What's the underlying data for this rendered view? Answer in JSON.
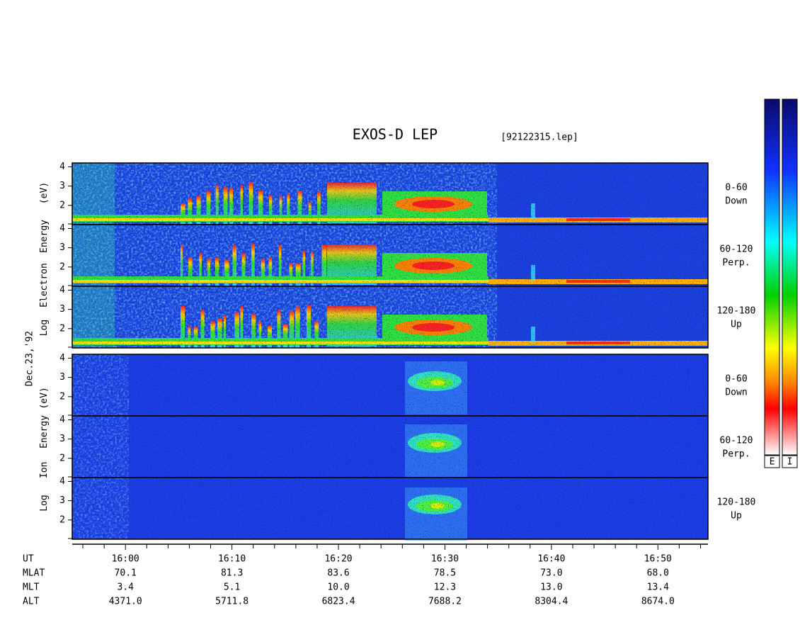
{
  "title": "EXOS-D LEP",
  "file": "[92122315.lep]",
  "date": "Dec.23,'92",
  "panel_yaxis": {
    "ylim": [
      1,
      4.2
    ],
    "yticks": [
      2,
      3,
      4
    ]
  },
  "groups": [
    {
      "label": [
        "Log",
        "Electron",
        "Energy",
        "(eV)"
      ],
      "panels": [
        {
          "label": [
            "0-60",
            "Down"
          ]
        },
        {
          "label": [
            "60-120",
            "Perp."
          ]
        },
        {
          "label": [
            "120-180",
            "Up"
          ]
        }
      ]
    },
    {
      "label": [
        "Log",
        "Ion",
        "Energy",
        "(eV)"
      ],
      "panels": [
        {
          "label": [
            "0-60",
            "Down"
          ]
        },
        {
          "label": [
            "60-120",
            "Perp."
          ]
        },
        {
          "label": [
            "120-180",
            "Up"
          ]
        }
      ]
    }
  ],
  "time_axis": {
    "xlim": [
      955,
      1014.7
    ],
    "ticks": [
      {
        "value": 960,
        "label": "16:00"
      },
      {
        "value": 970,
        "label": "16:10"
      },
      {
        "value": 980,
        "label": "16:20"
      },
      {
        "value": 990,
        "label": "16:30"
      },
      {
        "value": 1000,
        "label": "16:40"
      },
      {
        "value": 1010,
        "label": "16:50"
      }
    ],
    "minor_ticks": [
      956,
      958,
      962,
      964,
      966,
      968,
      972,
      974,
      976,
      978,
      982,
      984,
      986,
      988,
      992,
      994,
      996,
      998,
      1002,
      1004,
      1006,
      1008,
      1012,
      1014
    ]
  },
  "ephemeris": {
    "rows": [
      {
        "name": "UT"
      },
      {
        "name": "MLAT",
        "values": [
          "70.1",
          "81.3",
          "83.6",
          "78.5",
          "73.0",
          "68.0"
        ]
      },
      {
        "name": "MLT",
        "values": [
          "3.4",
          "5.1",
          "10.0",
          "12.3",
          "13.0",
          "13.4"
        ]
      },
      {
        "name": "ALT",
        "values": [
          "4371.0",
          "5711.8",
          "6823.4",
          "7688.2",
          "8304.4",
          "8674.0"
        ]
      }
    ]
  },
  "colorbars": [
    {
      "label": "E"
    },
    {
      "label": "I"
    }
  ]
}
